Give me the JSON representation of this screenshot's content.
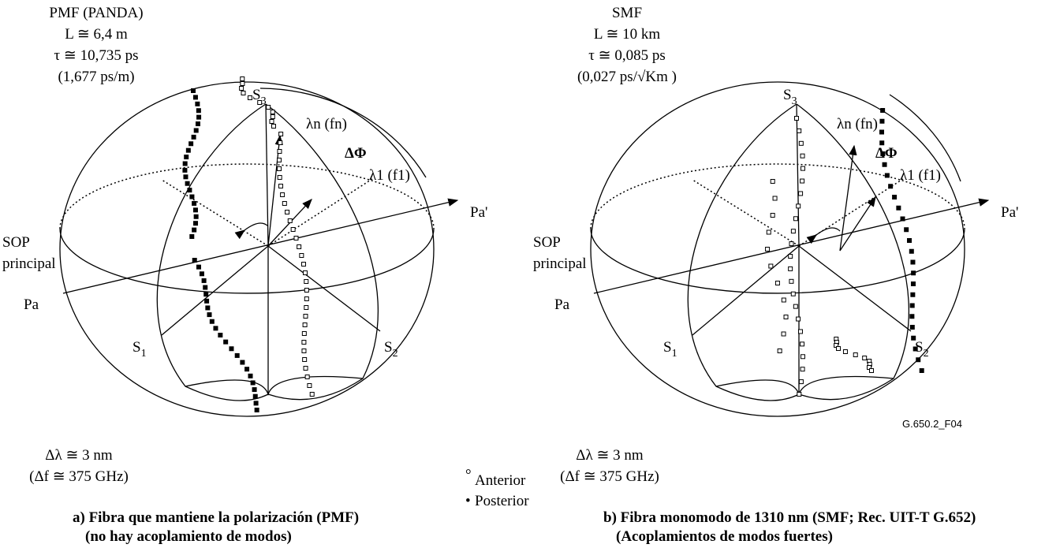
{
  "panels": [
    {
      "header": [
        "PMF (PANDA)",
        "L ≅ 6,4 m",
        "τ ≅ 10,735 ps",
        "(1,677 ps/m)"
      ],
      "s3": {
        "base": "S",
        "sub": "3"
      },
      "s1": {
        "base": "S",
        "sub": "1"
      },
      "s2": {
        "base": "S",
        "sub": "2"
      },
      "lambda_n": "λn (fn)",
      "delta_phi": "ΔΦ",
      "lambda_1": "λ1 (f1)",
      "pa_prime": "Pa'",
      "pa": "Pa",
      "sop": [
        "SOP",
        "principal"
      ],
      "bandwidth": [
        "Δλ ≅ 3 nm",
        "(Δf ≅ 375 GHz)"
      ],
      "caption": [
        "a)  Fibra que mantiene la polarización (PMF)",
        "(no hay acoplamiento de modos)"
      ]
    },
    {
      "header": [
        "SMF",
        "L ≅ 10 km",
        "τ ≅ 0,085 ps",
        "(0,027 ps/√Km )"
      ],
      "s3": {
        "base": "S",
        "sub": "3"
      },
      "s1": {
        "base": "S",
        "sub": "1"
      },
      "s2": {
        "base": "S",
        "sub": "2"
      },
      "lambda_n": "λn (fn)",
      "delta_phi": "ΔΦ",
      "lambda_1": "λ1 (f1)",
      "pa_prime": "Pa'",
      "pa": "Pa",
      "sop": [
        "SOP",
        "principal"
      ],
      "bandwidth": [
        "Δλ ≅ 3 nm",
        "(Δf ≅ 375 GHz)"
      ],
      "caption": [
        "b)  Fibra monomodo de 1310 nm (SMF; Rec. UIT-T G.652)",
        "(Acoplamientos de modos fuertes)"
      ]
    }
  ],
  "legend": {
    "anterior": "Anterior",
    "posterior": "Posterior"
  },
  "figure_id": "G.650.2_F04"
}
